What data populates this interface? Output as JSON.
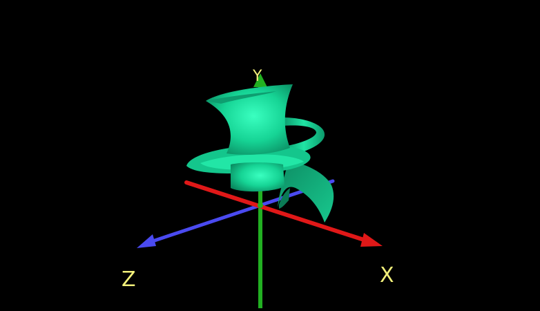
{
  "scene": {
    "background_color": "#000000",
    "label_color": "#f2f07a",
    "axes": {
      "x": {
        "label": "X",
        "color": "#e01818"
      },
      "y": {
        "label": "Y",
        "color": "#22b022"
      },
      "z": {
        "label": "Z",
        "color": "#4a4af0"
      }
    },
    "surface": {
      "shape": "helical-surface",
      "color": "#12d898"
    }
  }
}
